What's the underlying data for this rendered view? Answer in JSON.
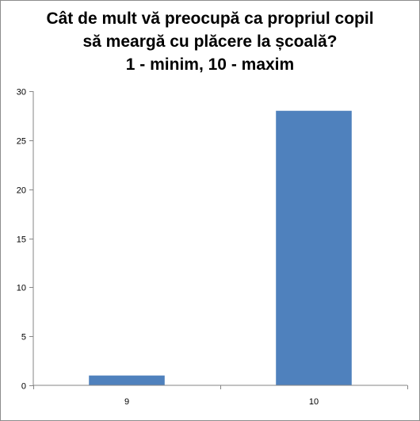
{
  "chart_data": {
    "type": "bar",
    "title_lines": [
      "Cât de mult vă preocupă ca propriul copil",
      "să meargă cu plăcere la școală?",
      "1 - minim, 10 - maxim"
    ],
    "categories": [
      "9",
      "10"
    ],
    "values": [
      1,
      28
    ],
    "ylim": [
      0,
      30
    ],
    "y_ticks": [
      "0",
      "5",
      "10",
      "15",
      "20",
      "25",
      "30"
    ],
    "xlabel": "",
    "ylabel": "",
    "grid": false,
    "legend": "none",
    "bar_color": "#4F81BD"
  }
}
